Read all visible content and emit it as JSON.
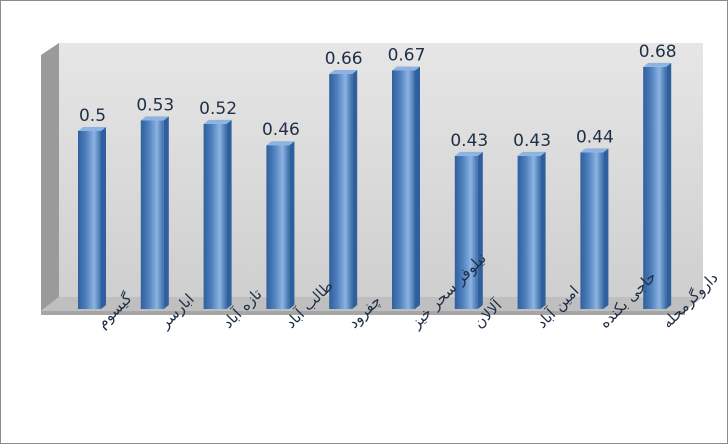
{
  "chart_data": {
    "type": "bar",
    "style": "3d-cylinder",
    "categories": [
      "گیسوم",
      "ابارسر",
      "تازه آباد",
      "طالب آباد",
      "چفرود",
      "نیلوفر سحر خیز",
      "آلالان",
      "امین آباد",
      "حاجی بکنده",
      "داروگرمحله"
    ],
    "values": [
      0.5,
      0.53,
      0.52,
      0.46,
      0.66,
      0.67,
      0.43,
      0.43,
      0.44,
      0.68
    ],
    "data_labels": [
      "0.5",
      "0.53",
      "0.52",
      "0.46",
      "0.66",
      "0.67",
      "0.43",
      "0.43",
      "0.44",
      "0.68"
    ],
    "title": "",
    "xlabel": "",
    "ylabel": "",
    "ylim": [
      0,
      0.72
    ],
    "grid": false,
    "legend": "none",
    "colors": {
      "bar": "#4f81bd",
      "bar_dark": "#2f5f9e",
      "bar_light": "#8db3e2",
      "wall": "#d9d9d9",
      "floor": "#bfbfbf",
      "label": "#1f2f45"
    }
  }
}
